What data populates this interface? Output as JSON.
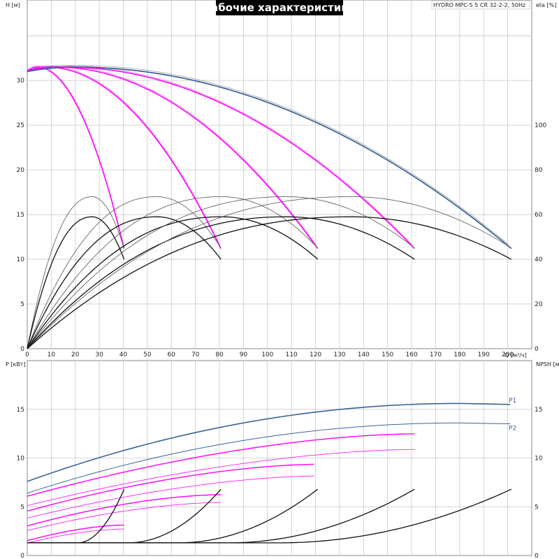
{
  "title": "Рабочие характеристики",
  "model": "HYDRO MPC-S 5 CR 32-2-2, 50Hz",
  "colors": {
    "pump": "#ff00ff",
    "max": "#3b6597",
    "eta": "#111111",
    "eta_light": "#555555",
    "grid": "#c8c8c8",
    "title_bg": "#000000"
  },
  "chart_data": [
    {
      "type": "line",
      "panel": "head-eta",
      "xlabel": "Q [м³/ч]",
      "ylabel": "H [м]",
      "y2label": "eta [%]",
      "xlim": [
        0,
        210
      ],
      "ylim": [
        0,
        39
      ],
      "y2lim": [
        0,
        156
      ],
      "x_ticks": [
        0,
        10,
        20,
        30,
        40,
        50,
        60,
        70,
        80,
        90,
        100,
        110,
        120,
        130,
        140,
        150,
        160,
        170,
        180,
        190,
        200
      ],
      "y_ticks": [
        0,
        5,
        10,
        15,
        20,
        25,
        30
      ],
      "y2_ticks": [
        0,
        20,
        40,
        60,
        80,
        100
      ],
      "head": {
        "shutoff": 31.0,
        "peak": 31.5,
        "peak_q": 4,
        "end": 11.2,
        "qmax_per_pump": 40.3,
        "pumps": [
          1,
          2,
          3,
          4
        ],
        "max_curve_pumps": 5
      },
      "eta": {
        "peak": 68,
        "peak_q": 27,
        "end": 40,
        "low_peak": 59,
        "low_end": 40,
        "low_q_factor": 0.88,
        "pumps": [
          1,
          2,
          3,
          4,
          5
        ]
      }
    },
    {
      "type": "line",
      "panel": "power-npsh",
      "xlabel": "",
      "ylabel": "P [кВт]",
      "y2label": "NPSH [м]",
      "xlim": [
        0,
        210
      ],
      "ylim": [
        0,
        20
      ],
      "x_ticks": [
        0,
        10,
        20,
        30,
        40,
        50,
        60,
        70,
        80,
        90,
        100,
        110,
        120,
        130,
        140,
        150,
        160,
        170,
        180,
        190,
        200
      ],
      "y_ticks": [
        0,
        5,
        10,
        15
      ],
      "y2_ticks": [
        0,
        5,
        10,
        15
      ],
      "series": [
        {
          "name": "P1",
          "p0": 7.6,
          "pmax": 15.6,
          "q_peak": 180,
          "q_end": 201
        },
        {
          "name": "P2",
          "p0": 6.4,
          "pmax": 13.6,
          "q_peak": 180,
          "q_end": 201
        }
      ],
      "pump_p1": {
        "p0": 1.52,
        "pmax": 3.12,
        "qmax": 40.3,
        "pumps": [
          1,
          2,
          3,
          4
        ]
      },
      "pump_p2": {
        "p0": 1.28,
        "pmax": 2.72,
        "qmax": 40.3,
        "pumps": [
          1,
          2,
          3,
          4
        ]
      },
      "npsh": {
        "min": 1.3,
        "max": 6.8,
        "q_start_factor": 0.52,
        "qmax": 40.3,
        "pumps": [
          1,
          2,
          3,
          4,
          5
        ]
      }
    }
  ]
}
